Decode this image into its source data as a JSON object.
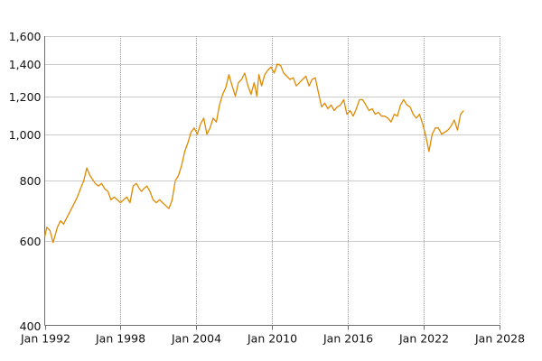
{
  "chart_data": {
    "type": "line",
    "y_scale": "log",
    "grid": true,
    "line_color": "#e08a00",
    "xlim": [
      "1992-01-01",
      "2028-01-01"
    ],
    "ylim": [
      400,
      1600
    ],
    "x_ticks": [
      "Jan 1992",
      "Jan 1998",
      "Jan 2004",
      "Jan 2010",
      "Jan 2016",
      "Jan 2022",
      "Jan 2028"
    ],
    "y_ticks": [
      "400",
      "600",
      "800",
      "1,000",
      "1,200",
      "1,400",
      "1,600"
    ],
    "series": [
      {
        "x": [
          "1992-01-01",
          "1992-03-01",
          "1992-06-01",
          "1992-09-01",
          "1993-01-01",
          "1993-04-01",
          "1993-07-01",
          "1993-10-01",
          "1994-01-01",
          "1994-04-01",
          "1994-08-01",
          "1994-11-01",
          "1995-02-01",
          "1995-05-01",
          "1995-08-01",
          "1996-01-01",
          "1996-04-01",
          "1996-07-01",
          "1996-10-01",
          "1997-01-01",
          "1997-04-01",
          "1997-07-01",
          "1997-10-01",
          "1998-01-01",
          "1998-04-01",
          "1998-07-01",
          "1998-10-01",
          "1999-01-01",
          "1999-04-01",
          "1999-07-01",
          "1999-09-01",
          "1999-11-01",
          "2000-02-01",
          "2000-05-01",
          "2000-08-01",
          "2000-11-01",
          "2001-02-01",
          "2001-05-01",
          "2001-08-01",
          "2001-11-01",
          "2002-02-01",
          "2002-05-01",
          "2002-08-01",
          "2002-11-01",
          "2003-02-01",
          "2003-05-01",
          "2003-08-01",
          "2003-11-01",
          "2004-02-01",
          "2004-05-01",
          "2004-08-01",
          "2004-11-01",
          "2005-02-01",
          "2005-05-01",
          "2005-08-01",
          "2005-11-01",
          "2006-02-01",
          "2006-05-01",
          "2006-08-01",
          "2006-11-01",
          "2007-02-01",
          "2007-05-01",
          "2007-08-01",
          "2007-11-01",
          "2008-02-01",
          "2008-05-01",
          "2008-08-01",
          "2008-10-15",
          "2008-12-15",
          "2009-03-01",
          "2009-06-01",
          "2009-09-01",
          "2009-12-01",
          "2010-03-01",
          "2010-06-01",
          "2010-09-01",
          "2010-12-01",
          "2011-03-01",
          "2011-06-01",
          "2011-09-01",
          "2011-12-01",
          "2012-03-01",
          "2012-06-01",
          "2012-09-01",
          "2012-12-01",
          "2013-03-01",
          "2013-06-01",
          "2013-09-01",
          "2013-12-01",
          "2014-03-01",
          "2014-06-01",
          "2014-09-01",
          "2014-12-01",
          "2015-03-01",
          "2015-06-01",
          "2015-09-01",
          "2015-12-01",
          "2016-03-01",
          "2016-06-01",
          "2016-09-01",
          "2016-12-01",
          "2017-03-01",
          "2017-06-01",
          "2017-09-01",
          "2017-12-01",
          "2018-03-01",
          "2018-06-01",
          "2018-09-01",
          "2018-12-01",
          "2019-03-01",
          "2019-06-01",
          "2019-09-01",
          "2019-12-01",
          "2020-03-01",
          "2020-06-01",
          "2020-09-01",
          "2020-12-01",
          "2021-03-01",
          "2021-06-01",
          "2021-09-01",
          "2021-12-01",
          "2022-03-01",
          "2022-06-01",
          "2022-09-01",
          "2022-12-01",
          "2023-03-01",
          "2023-06-01",
          "2023-09-01",
          "2023-12-01",
          "2024-03-01",
          "2024-06-01",
          "2024-09-01",
          "2024-12-01",
          "2025-03-01"
        ],
        "values": [
          610,
          640,
          630,
          595,
          640,
          660,
          650,
          670,
          690,
          710,
          740,
          770,
          800,
          850,
          820,
          790,
          780,
          790,
          770,
          760,
          730,
          740,
          730,
          720,
          730,
          740,
          720,
          780,
          790,
          770,
          760,
          770,
          780,
          760,
          730,
          720,
          730,
          720,
          710,
          700,
          730,
          800,
          820,
          860,
          920,
          960,
          1010,
          1030,
          1000,
          1050,
          1080,
          1000,
          1030,
          1080,
          1060,
          1150,
          1210,
          1250,
          1330,
          1260,
          1200,
          1280,
          1300,
          1340,
          1260,
          1210,
          1280,
          1200,
          1330,
          1260,
          1330,
          1360,
          1380,
          1340,
          1400,
          1390,
          1340,
          1320,
          1300,
          1310,
          1260,
          1280,
          1300,
          1320,
          1260,
          1300,
          1310,
          1220,
          1140,
          1160,
          1130,
          1150,
          1120,
          1140,
          1150,
          1180,
          1100,
          1120,
          1090,
          1130,
          1180,
          1180,
          1150,
          1120,
          1130,
          1100,
          1110,
          1090,
          1090,
          1080,
          1060,
          1100,
          1090,
          1150,
          1180,
          1150,
          1140,
          1100,
          1080,
          1100,
          1050,
          990,
          920,
          1000,
          1030,
          1030,
          1000,
          1010,
          1020,
          1040,
          1070,
          1020,
          1100,
          1120
        ]
      }
    ]
  }
}
